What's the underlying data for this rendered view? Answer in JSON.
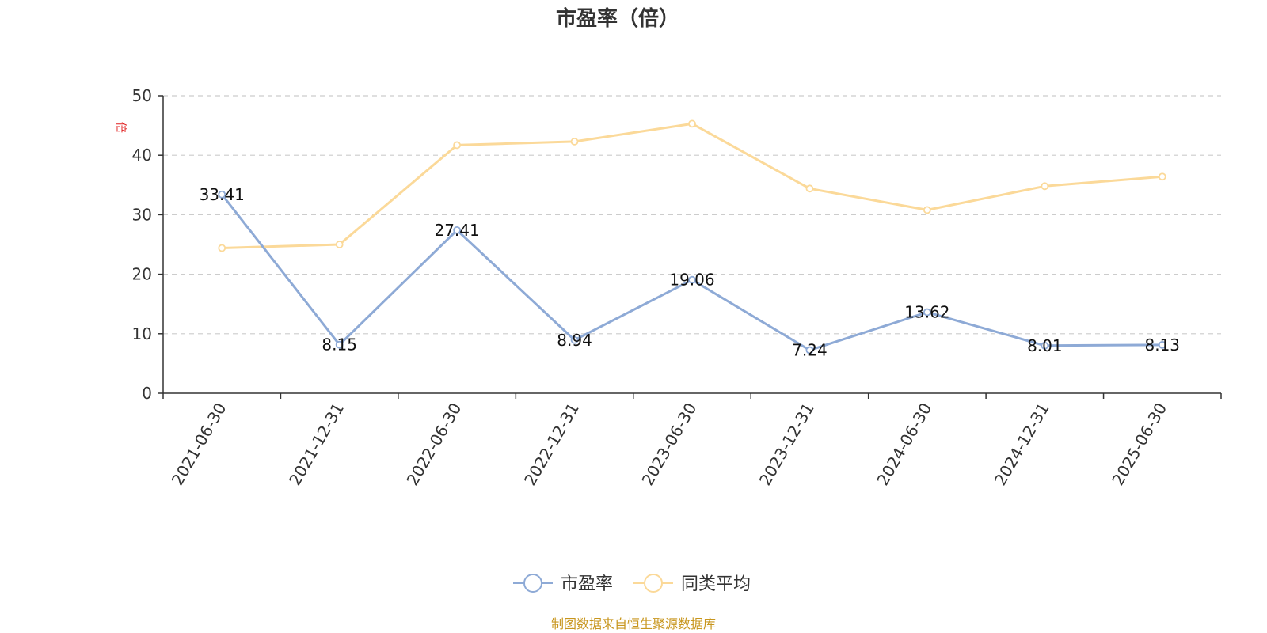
{
  "chart_data": {
    "type": "line",
    "title": "市盈率（倍）",
    "ylabel": "倍",
    "ylim": [
      0,
      50
    ],
    "yticks": [
      0,
      10,
      20,
      30,
      40,
      50
    ],
    "grid": "horizontal-dashed",
    "categories": [
      "2021-06-30",
      "2021-12-31",
      "2022-06-30",
      "2022-12-31",
      "2023-06-30",
      "2023-12-31",
      "2024-06-30",
      "2024-12-31",
      "2025-06-30"
    ],
    "series": [
      {
        "name": "市盈率",
        "color": "#8eaad6",
        "values": [
          33.41,
          8.15,
          27.41,
          8.94,
          19.06,
          7.24,
          13.62,
          8.01,
          8.13
        ],
        "labels": [
          "33.41",
          "8.15",
          "27.41",
          "8.94",
          "19.06",
          "7.24",
          "13.62",
          "8.01",
          "8.13"
        ]
      },
      {
        "name": "同类平均",
        "color": "#fbd999",
        "values": [
          24.4,
          25.0,
          41.7,
          42.3,
          45.3,
          34.4,
          30.8,
          34.8,
          36.4
        ]
      }
    ],
    "legend_position": "bottom-center",
    "source": "制图数据来自恒生聚源数据库",
    "unit_color": "#e02020",
    "source_color": "#c8961e"
  }
}
